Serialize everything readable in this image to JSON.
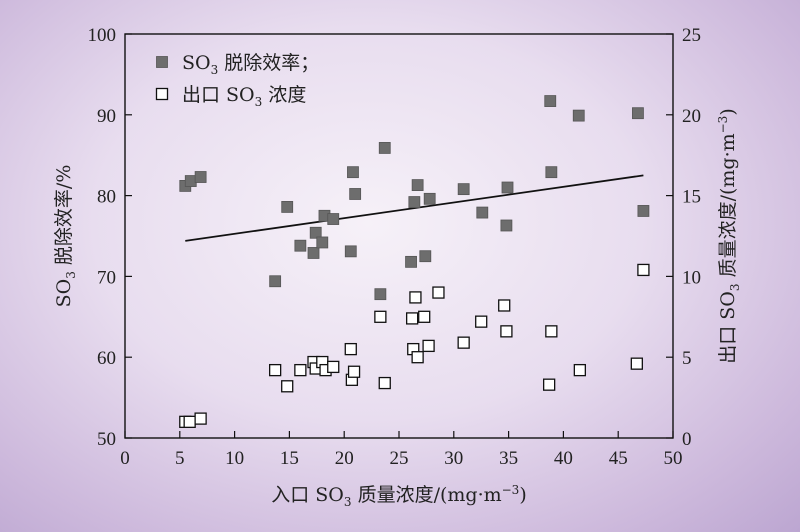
{
  "chart_data": {
    "type": "scatter",
    "title": "",
    "xlabel": {
      "pre": "入口 SO",
      "sub": "3",
      "post": " 质量浓度/(mg·m",
      "sup": "−3",
      "end": ")"
    },
    "ylabel_left": {
      "pre": "SO",
      "sub": "3",
      "post": " 脱除效率/%"
    },
    "ylabel_right": {
      "pre": "出口 SO",
      "sub": "3",
      "post": " 质量浓度/(mg·m",
      "sup": "−3",
      "end": ")"
    },
    "xlim": [
      0,
      50
    ],
    "ylim_left": [
      50,
      100
    ],
    "ylim_right": [
      0,
      25
    ],
    "x_ticks": [
      "0",
      "5",
      "10",
      "15",
      "20",
      "25",
      "30",
      "35",
      "40",
      "45",
      "50"
    ],
    "y_left_ticks": [
      "50",
      "60",
      "70",
      "80",
      "90",
      "100"
    ],
    "y_right_ticks": [
      "0",
      "5",
      "10",
      "15",
      "20",
      "25"
    ],
    "legend": {
      "position": "top-left",
      "items": [
        {
          "pre": "SO",
          "sub": "3",
          "post": " 脱除效率；",
          "marker": "filled-square"
        },
        {
          "pre": "出口 SO",
          "sub": "3",
          "post": " 浓度",
          "marker": "open-square"
        }
      ]
    },
    "series": [
      {
        "name": "SO3 脱除效率",
        "axis": "left",
        "marker": "filled-square",
        "color": "#6d6d6d",
        "points": [
          [
            5.5,
            81.2
          ],
          [
            6.0,
            81.8
          ],
          [
            6.9,
            82.3
          ],
          [
            13.7,
            69.4
          ],
          [
            14.8,
            78.6
          ],
          [
            16.0,
            73.8
          ],
          [
            17.2,
            72.9
          ],
          [
            17.4,
            75.4
          ],
          [
            18.0,
            74.2
          ],
          [
            18.2,
            77.5
          ],
          [
            19.0,
            77.1
          ],
          [
            20.6,
            73.1
          ],
          [
            20.8,
            82.9
          ],
          [
            21.0,
            80.2
          ],
          [
            23.3,
            67.8
          ],
          [
            23.7,
            85.9
          ],
          [
            26.1,
            71.8
          ],
          [
            26.4,
            79.2
          ],
          [
            26.7,
            81.3
          ],
          [
            27.4,
            72.5
          ],
          [
            27.8,
            79.6
          ],
          [
            30.9,
            80.8
          ],
          [
            32.6,
            77.9
          ],
          [
            34.8,
            76.3
          ],
          [
            34.9,
            81.0
          ],
          [
            38.8,
            91.7
          ],
          [
            38.9,
            82.9
          ],
          [
            41.4,
            89.9
          ],
          [
            46.8,
            90.2
          ],
          [
            47.3,
            78.1
          ]
        ]
      },
      {
        "name": "出口 SO3 浓度",
        "axis": "right",
        "marker": "open-square",
        "color": "#ffffff",
        "points": [
          [
            5.5,
            1.0
          ],
          [
            5.9,
            1.0
          ],
          [
            6.9,
            1.2
          ],
          [
            13.7,
            4.2
          ],
          [
            14.8,
            3.2
          ],
          [
            16.0,
            4.2
          ],
          [
            17.2,
            4.7
          ],
          [
            17.4,
            4.3
          ],
          [
            18.0,
            4.7
          ],
          [
            18.3,
            4.2
          ],
          [
            19.0,
            4.4
          ],
          [
            20.6,
            5.5
          ],
          [
            20.7,
            3.6
          ],
          [
            20.9,
            4.1
          ],
          [
            23.3,
            7.5
          ],
          [
            23.7,
            3.4
          ],
          [
            26.2,
            7.4
          ],
          [
            26.3,
            5.5
          ],
          [
            26.5,
            8.7
          ],
          [
            26.7,
            5.0
          ],
          [
            27.3,
            7.5
          ],
          [
            27.7,
            5.7
          ],
          [
            28.6,
            9.0
          ],
          [
            30.9,
            5.9
          ],
          [
            32.5,
            7.2
          ],
          [
            34.6,
            8.2
          ],
          [
            34.8,
            6.6
          ],
          [
            38.7,
            3.3
          ],
          [
            38.9,
            6.6
          ],
          [
            41.5,
            4.2
          ],
          [
            46.7,
            4.6
          ],
          [
            47.3,
            10.4
          ]
        ]
      }
    ],
    "trendline": {
      "axis": "left",
      "x": [
        5.5,
        47.3
      ],
      "y": [
        74.4,
        82.5
      ],
      "color": "#111111"
    }
  }
}
